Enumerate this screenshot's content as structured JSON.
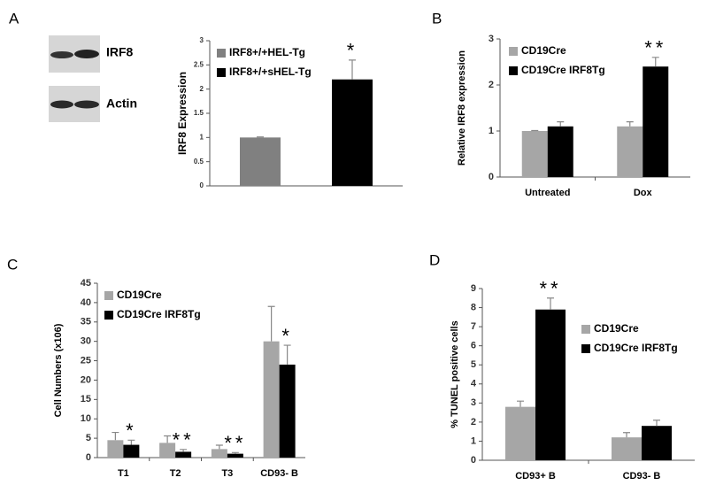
{
  "chart_data": [
    {
      "type": "bar",
      "panel": "A",
      "blot_labels": [
        "IRF8",
        "Actin"
      ],
      "y_label": "IRF8 Expression",
      "categories": [
        null
      ],
      "series": [
        {
          "name": "IRF8+/+HEL-Tg",
          "color": "#808080",
          "values": [
            1
          ],
          "errors": [
            0.01
          ],
          "annotations": [
            null
          ]
        },
        {
          "name": "IRF8+/+sHEL-Tg",
          "color": "#000000",
          "values": [
            2.2
          ],
          "errors": [
            0.4
          ],
          "annotations": [
            "*"
          ]
        }
      ],
      "ylim": [
        0,
        3
      ],
      "yticks": [
        0,
        0.5,
        1,
        1.5,
        2,
        2.5,
        3
      ],
      "legend": "upper-left"
    },
    {
      "type": "bar",
      "panel": "B",
      "y_label": "Relative IRF8  expression",
      "categories": [
        "Untreated",
        "Dox"
      ],
      "series": [
        {
          "name": "CD19Cre",
          "color": "#a6a6a6",
          "values": [
            1.0,
            1.1
          ],
          "errors": [
            0.01,
            0.1
          ],
          "annotations": [
            null,
            null
          ]
        },
        {
          "name": "CD19Cre IRF8Tg",
          "color": "#000000",
          "values": [
            1.1,
            2.4
          ],
          "errors": [
            0.1,
            0.2
          ],
          "annotations": [
            null,
            "**"
          ]
        }
      ],
      "ylim": [
        0,
        3
      ],
      "yticks": [
        0,
        1,
        2,
        3
      ],
      "legend": "upper-left"
    },
    {
      "type": "bar",
      "panel": "C",
      "y_label": "Cell Numbers (x106)",
      "categories": [
        "T1",
        "T2",
        "T3",
        "CD93- B"
      ],
      "series": [
        {
          "name": "CD19Cre",
          "color": "#a6a6a6",
          "values": [
            4.5,
            3.8,
            2.2,
            30
          ],
          "errors": [
            2,
            1.8,
            1,
            9
          ],
          "annotations": [
            null,
            null,
            null,
            null
          ]
        },
        {
          "name": "CD19Cre IRF8Tg",
          "color": "#000000",
          "values": [
            3.3,
            1.5,
            1,
            24
          ],
          "errors": [
            1.2,
            0.6,
            0.3,
            5
          ],
          "annotations": [
            "*",
            "**",
            "**",
            "*"
          ]
        }
      ],
      "ylim": [
        0,
        45
      ],
      "yticks": [
        0,
        5,
        10,
        15,
        20,
        25,
        30,
        35,
        40,
        45
      ],
      "legend": "upper-left"
    },
    {
      "type": "bar",
      "panel": "D",
      "y_label": "% TUNEL positive cells",
      "categories": [
        "CD93+ B",
        "CD93- B"
      ],
      "series": [
        {
          "name": "CD19Cre",
          "color": "#a6a6a6",
          "values": [
            2.8,
            1.2
          ],
          "errors": [
            0.3,
            0.25
          ],
          "annotations": [
            null,
            null
          ]
        },
        {
          "name": "CD19Cre IRF8Tg",
          "color": "#000000",
          "values": [
            7.9,
            1.8
          ],
          "errors": [
            0.6,
            0.3
          ],
          "annotations": [
            "**",
            null
          ]
        }
      ],
      "ylim": [
        0,
        9
      ],
      "yticks": [
        0,
        1,
        2,
        3,
        4,
        5,
        6,
        7,
        8,
        9
      ],
      "legend": "upper-right"
    }
  ]
}
